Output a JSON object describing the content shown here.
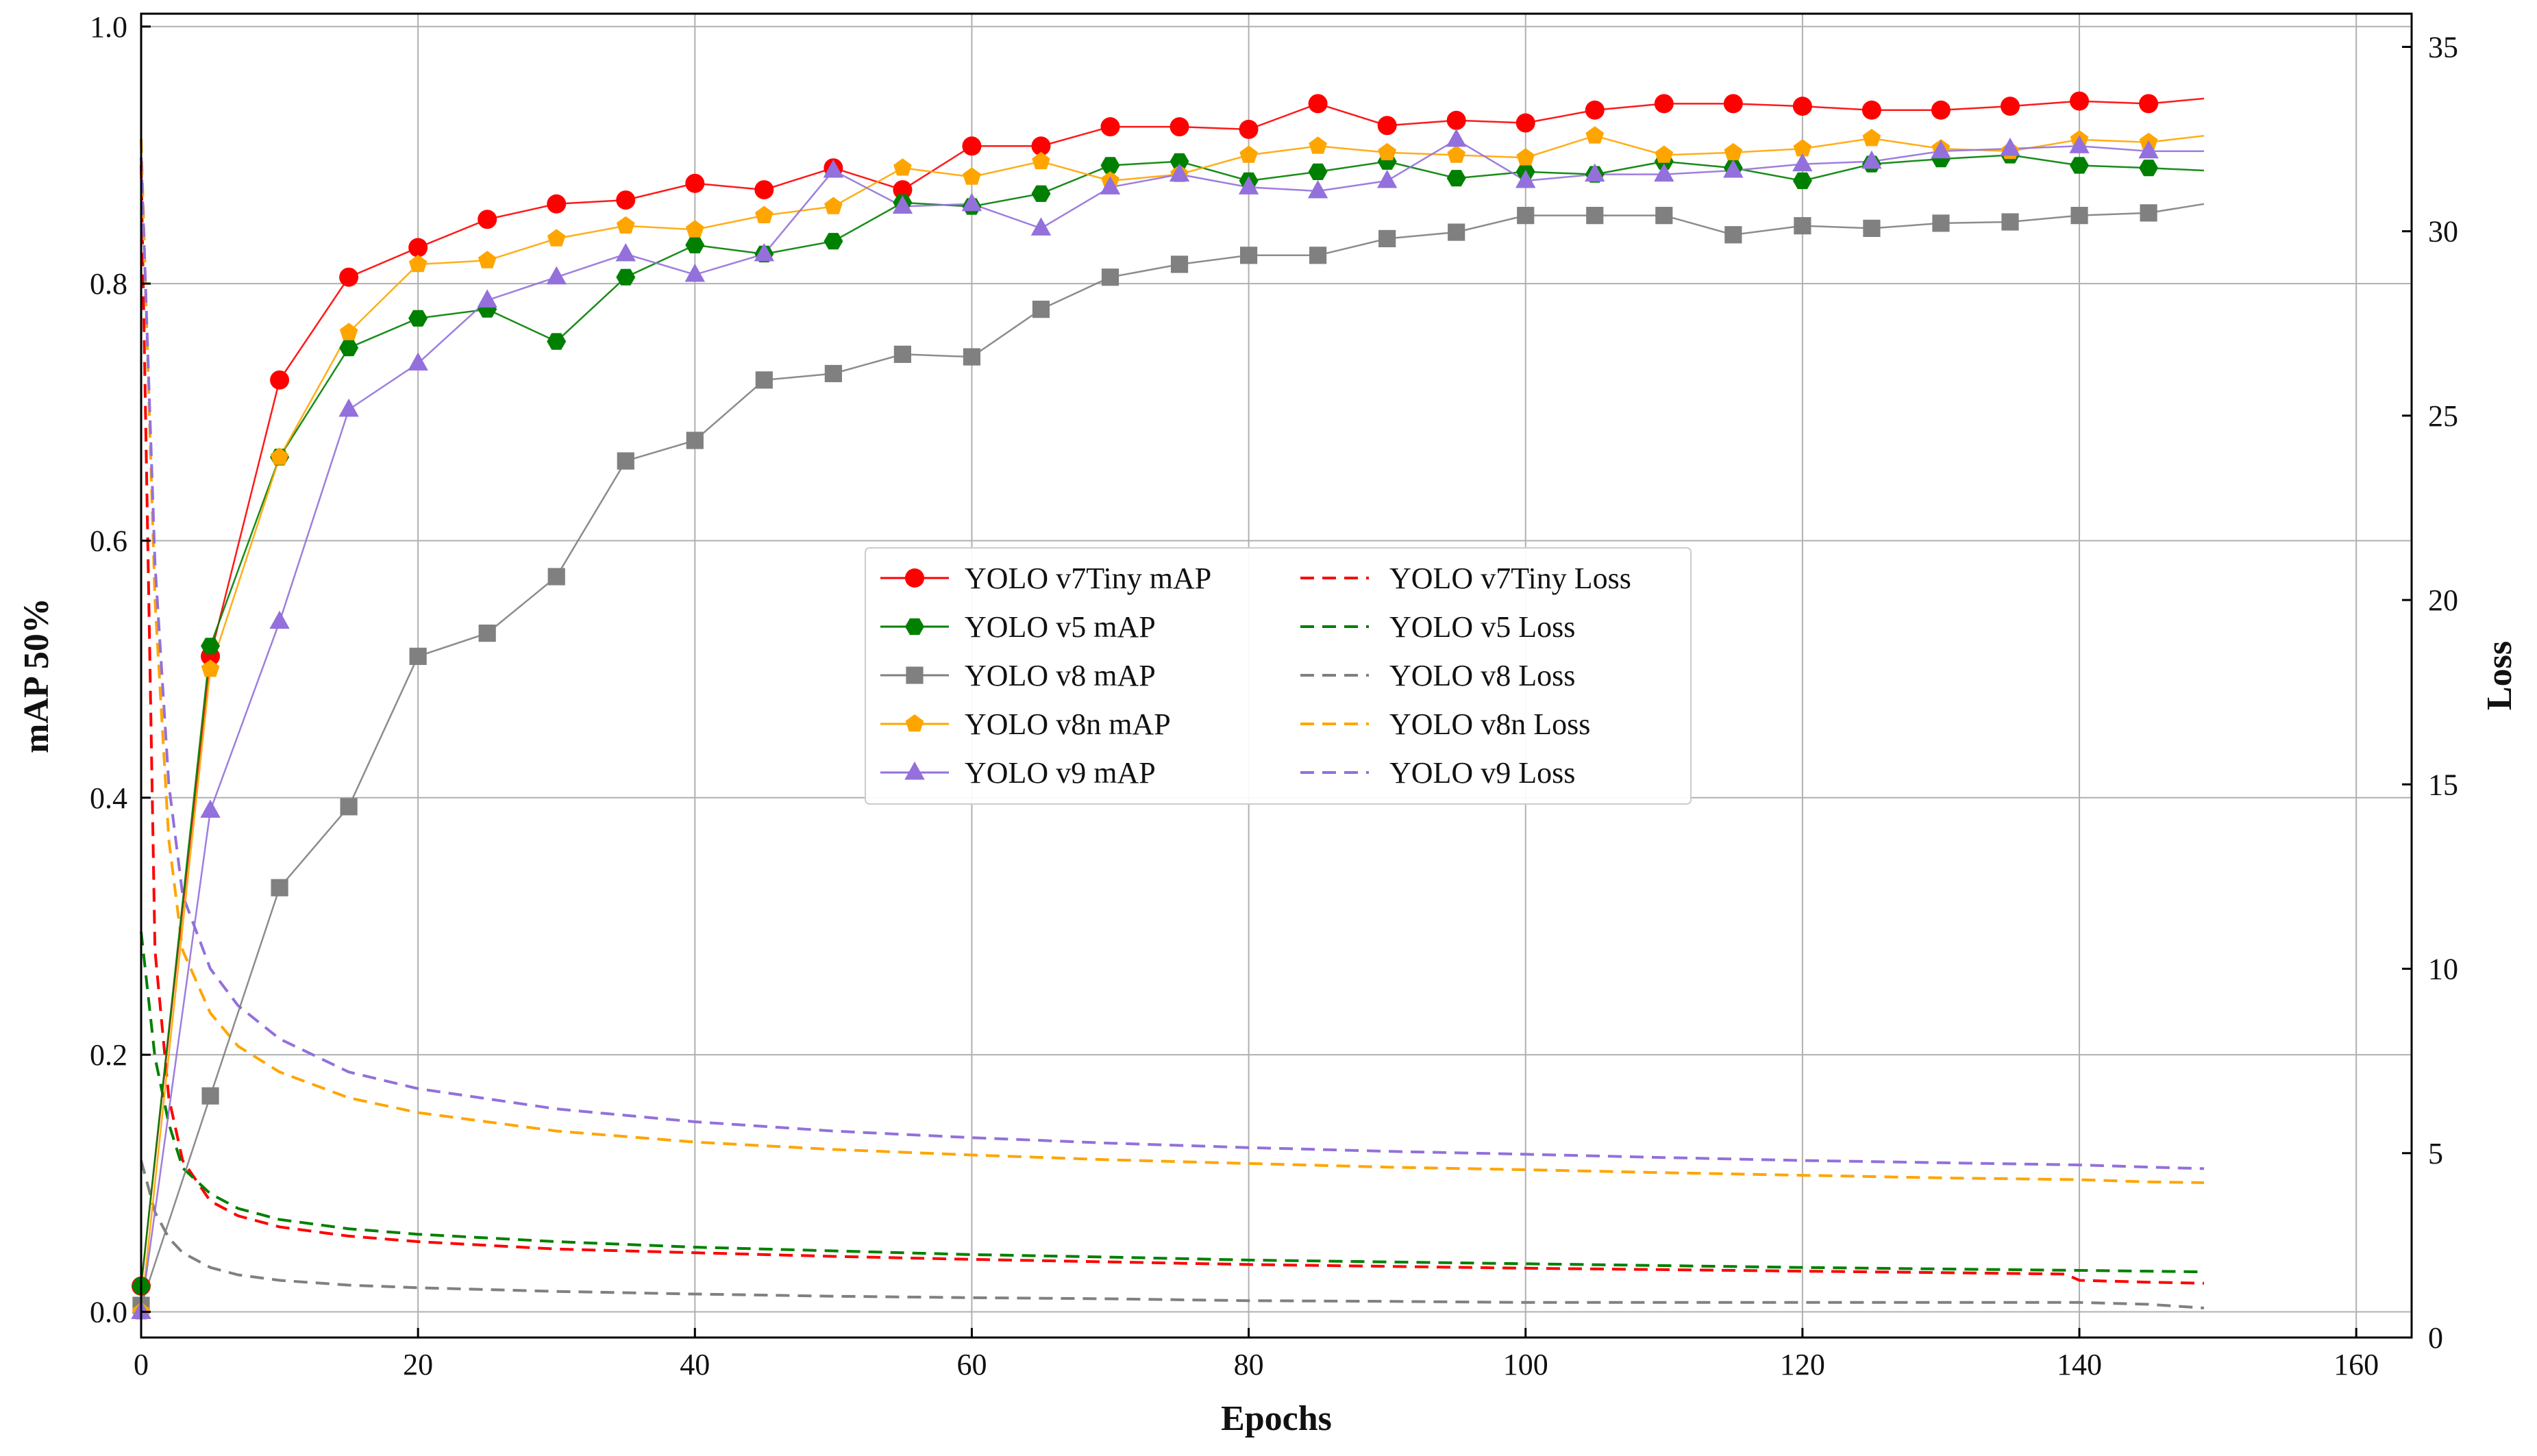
{
  "chart_data": {
    "type": "line",
    "title": "",
    "xlabel": "Epochs",
    "ylabel_left": "mAP 50%",
    "ylabel_right": "Loss",
    "xlim": [
      0,
      164
    ],
    "ylim_left": [
      -0.02,
      1.01
    ],
    "ylim_right": [
      0,
      35.9
    ],
    "x_ticks": [
      0,
      20,
      40,
      60,
      80,
      100,
      120,
      140,
      160
    ],
    "x_tick_labels": [
      "0",
      "20",
      "40",
      "60",
      "80",
      "100",
      "120",
      "140",
      "160"
    ],
    "y_left_ticks": [
      0.0,
      0.2,
      0.4,
      0.6,
      0.8,
      1.0
    ],
    "y_left_tick_labels": [
      "0.0",
      "0.2",
      "0.4",
      "0.6",
      "0.8",
      "1.0"
    ],
    "y_right_ticks": [
      0,
      5,
      10,
      15,
      20,
      25,
      30,
      35
    ],
    "y_right_tick_labels": [
      "0",
      "5",
      "10",
      "15",
      "20",
      "25",
      "30",
      "35"
    ],
    "grid": true,
    "legend_position": "center",
    "legend": {
      "left_column": [
        "YOLO v7Tiny mAP",
        "YOLO v5 mAP",
        "YOLO v8 mAP",
        "YOLO v8n mAP",
        "YOLO v9 mAP"
      ],
      "right_column": [
        "YOLO v7Tiny Loss",
        "YOLO v5 Loss",
        "YOLO v8 Loss",
        "YOLO v8n Loss",
        "YOLO v9 Loss"
      ]
    },
    "map_series": [
      {
        "name": "YOLO v7Tiny mAP",
        "color": "#ff0000",
        "marker": "circle",
        "axis": "left",
        "x": [
          0,
          5,
          10,
          15,
          20,
          25,
          30,
          35,
          40,
          45,
          50,
          55,
          60,
          65,
          70,
          75,
          80,
          85,
          90,
          95,
          100,
          105,
          110,
          115,
          120,
          125,
          130,
          135,
          140,
          145,
          149
        ],
        "values": [
          0.02,
          0.51,
          0.725,
          0.805,
          0.828,
          0.85,
          0.862,
          0.865,
          0.878,
          0.873,
          0.89,
          0.873,
          0.907,
          0.907,
          0.922,
          0.922,
          0.92,
          0.94,
          0.923,
          0.927,
          0.925,
          0.935,
          0.94,
          0.94,
          0.938,
          0.935,
          0.935,
          0.938,
          0.942,
          0.94,
          0.944
        ]
      },
      {
        "name": "YOLO v5 mAP",
        "color": "#008000",
        "marker": "hexagon",
        "axis": "left",
        "x": [
          0,
          5,
          10,
          15,
          20,
          25,
          30,
          35,
          40,
          45,
          50,
          55,
          60,
          65,
          70,
          75,
          80,
          85,
          90,
          95,
          100,
          105,
          110,
          115,
          120,
          125,
          130,
          135,
          140,
          145,
          149
        ],
        "values": [
          0.02,
          0.518,
          0.665,
          0.75,
          0.773,
          0.78,
          0.755,
          0.805,
          0.83,
          0.823,
          0.833,
          0.863,
          0.86,
          0.87,
          0.892,
          0.895,
          0.88,
          0.887,
          0.895,
          0.882,
          0.887,
          0.885,
          0.895,
          0.89,
          0.88,
          0.893,
          0.897,
          0.9,
          0.892,
          0.89,
          0.888
        ]
      },
      {
        "name": "YOLO v8 mAP",
        "color": "#808080",
        "marker": "square",
        "axis": "left",
        "x": [
          0,
          5,
          10,
          15,
          20,
          25,
          30,
          35,
          40,
          45,
          50,
          55,
          60,
          65,
          70,
          75,
          80,
          85,
          90,
          95,
          100,
          105,
          110,
          115,
          120,
          125,
          130,
          135,
          140,
          145,
          149
        ],
        "values": [
          0.005,
          0.168,
          0.33,
          0.393,
          0.51,
          0.528,
          0.572,
          0.662,
          0.678,
          0.725,
          0.73,
          0.745,
          0.743,
          0.78,
          0.805,
          0.815,
          0.822,
          0.822,
          0.835,
          0.84,
          0.853,
          0.853,
          0.853,
          0.838,
          0.845,
          0.843,
          0.847,
          0.848,
          0.853,
          0.855,
          0.862
        ]
      },
      {
        "name": "YOLO v8n mAP",
        "color": "#ffa500",
        "marker": "pentagon",
        "axis": "left",
        "x": [
          0,
          5,
          10,
          15,
          20,
          25,
          30,
          35,
          40,
          45,
          50,
          55,
          60,
          65,
          70,
          75,
          80,
          85,
          90,
          95,
          100,
          105,
          110,
          115,
          120,
          125,
          130,
          135,
          140,
          145,
          149
        ],
        "values": [
          0.0,
          0.5,
          0.665,
          0.762,
          0.815,
          0.818,
          0.835,
          0.845,
          0.842,
          0.853,
          0.86,
          0.89,
          0.883,
          0.895,
          0.88,
          0.885,
          0.9,
          0.907,
          0.902,
          0.9,
          0.898,
          0.915,
          0.9,
          0.902,
          0.905,
          0.913,
          0.905,
          0.903,
          0.912,
          0.91,
          0.915
        ]
      },
      {
        "name": "YOLO v9 mAP",
        "color": "#9370db",
        "marker": "triangle",
        "axis": "left",
        "x": [
          0,
          5,
          10,
          15,
          20,
          25,
          30,
          35,
          40,
          45,
          50,
          55,
          60,
          65,
          70,
          75,
          80,
          85,
          90,
          95,
          100,
          105,
          110,
          115,
          120,
          125,
          130,
          135,
          140,
          145,
          149
        ],
        "values": [
          0.0,
          0.39,
          0.537,
          0.702,
          0.738,
          0.787,
          0.805,
          0.823,
          0.807,
          0.823,
          0.888,
          0.86,
          0.862,
          0.843,
          0.875,
          0.885,
          0.875,
          0.872,
          0.88,
          0.912,
          0.88,
          0.885,
          0.885,
          0.888,
          0.893,
          0.895,
          0.903,
          0.905,
          0.907,
          0.903,
          0.903
        ]
      }
    ],
    "loss_series": [
      {
        "name": "YOLO v7Tiny Loss",
        "color": "#ff0000",
        "axis": "right",
        "dash": true,
        "x": [
          0,
          1,
          2,
          3,
          5,
          7,
          10,
          15,
          20,
          30,
          40,
          50,
          60,
          70,
          80,
          90,
          100,
          110,
          120,
          130,
          139,
          140,
          145,
          149
        ],
        "values": [
          31.8,
          10.5,
          6.5,
          4.8,
          3.7,
          3.3,
          3.0,
          2.75,
          2.6,
          2.4,
          2.3,
          2.2,
          2.12,
          2.05,
          1.98,
          1.93,
          1.88,
          1.84,
          1.8,
          1.76,
          1.72,
          1.55,
          1.5,
          1.47
        ]
      },
      {
        "name": "YOLO v5 Loss",
        "color": "#008000",
        "axis": "right",
        "dash": true,
        "x": [
          0,
          1,
          2,
          3,
          5,
          7,
          10,
          15,
          20,
          30,
          40,
          50,
          60,
          70,
          80,
          90,
          100,
          110,
          120,
          130,
          140,
          145,
          149
        ],
        "values": [
          11.0,
          7.6,
          5.8,
          4.6,
          3.9,
          3.5,
          3.2,
          2.95,
          2.8,
          2.6,
          2.45,
          2.35,
          2.25,
          2.18,
          2.1,
          2.05,
          2.0,
          1.95,
          1.9,
          1.86,
          1.82,
          1.8,
          1.78
        ]
      },
      {
        "name": "YOLO v8 Loss",
        "color": "#808080",
        "axis": "right",
        "dash": true,
        "x": [
          0,
          1,
          2,
          3,
          5,
          7,
          10,
          15,
          20,
          30,
          40,
          50,
          60,
          70,
          80,
          90,
          100,
          110,
          120,
          130,
          140,
          145,
          149
        ],
        "values": [
          4.8,
          3.4,
          2.7,
          2.3,
          1.9,
          1.7,
          1.55,
          1.42,
          1.35,
          1.25,
          1.18,
          1.12,
          1.08,
          1.05,
          1.0,
          0.98,
          0.95,
          0.95,
          0.95,
          0.95,
          0.95,
          0.9,
          0.8
        ]
      },
      {
        "name": "YOLO v8n Loss",
        "color": "#ffa500",
        "axis": "right",
        "dash": true,
        "x": [
          0,
          1,
          2,
          3,
          5,
          7,
          10,
          15,
          20,
          30,
          40,
          50,
          60,
          70,
          80,
          90,
          100,
          110,
          120,
          130,
          140,
          145,
          149
        ],
        "values": [
          32.5,
          20.0,
          13.5,
          10.5,
          8.8,
          7.9,
          7.2,
          6.5,
          6.1,
          5.6,
          5.3,
          5.1,
          4.95,
          4.82,
          4.72,
          4.62,
          4.55,
          4.47,
          4.4,
          4.33,
          4.28,
          4.22,
          4.2
        ]
      },
      {
        "name": "YOLO v9 Loss",
        "color": "#9370db",
        "axis": "right",
        "dash": true,
        "x": [
          0,
          1,
          2,
          3,
          5,
          7,
          10,
          15,
          20,
          30,
          40,
          50,
          60,
          70,
          80,
          90,
          100,
          110,
          120,
          130,
          140,
          145,
          149
        ],
        "values": [
          32.0,
          21.0,
          15.0,
          12.0,
          10.0,
          9.0,
          8.1,
          7.2,
          6.75,
          6.2,
          5.85,
          5.6,
          5.42,
          5.27,
          5.15,
          5.05,
          4.97,
          4.88,
          4.8,
          4.74,
          4.68,
          4.62,
          4.58
        ]
      }
    ]
  }
}
